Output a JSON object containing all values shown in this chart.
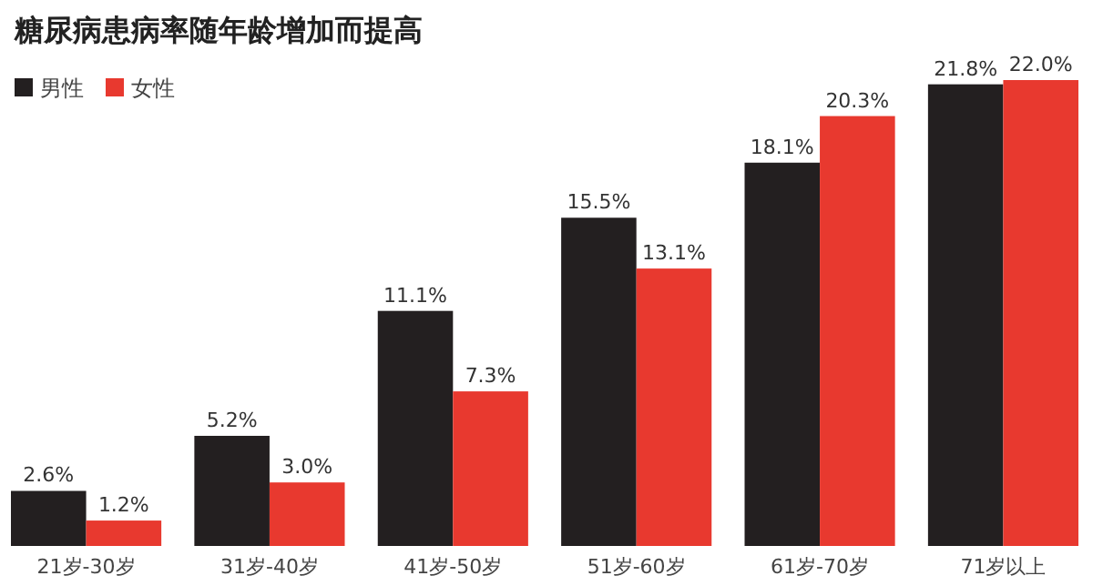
{
  "chart_data": {
    "type": "bar",
    "title": "糖尿病患病率随年龄增加而提高",
    "categories": [
      "21岁-30岁",
      "31岁-40岁",
      "41岁-50岁",
      "51岁-60岁",
      "61岁-70岁",
      "71岁以上"
    ],
    "series": [
      {
        "name": "男性",
        "color": "#231f20",
        "values": [
          2.6,
          5.2,
          11.1,
          15.5,
          18.1,
          21.8
        ],
        "value_labels": [
          "2.6%",
          "5.2%",
          "11.1%",
          "15.5%",
          "18.1%",
          "21.8%"
        ]
      },
      {
        "name": "女性",
        "color": "#e8392f",
        "values": [
          1.2,
          3.0,
          7.3,
          13.1,
          20.3,
          22.0
        ],
        "value_labels": [
          "1.2%",
          "3.0%",
          "7.3%",
          "13.1%",
          "20.3%",
          "22.0%"
        ]
      }
    ],
    "ylim": [
      0,
      22
    ],
    "tick_labels": "x",
    "legend": "top left"
  }
}
